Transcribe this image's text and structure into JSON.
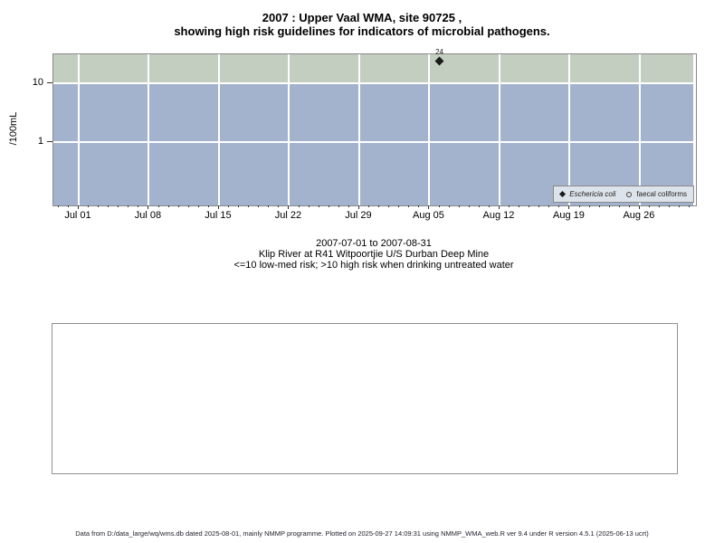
{
  "chart_data": {
    "type": "scatter",
    "title": [
      "2007 : Upper Vaal WMA, site 90725 ,",
      "showing high risk guidelines for indicators of microbial pathogens."
    ],
    "subtitle": [
      "2007-07-01 to 2007-08-31",
      "Klip River at R41 Witpoortjie U/S Durban Deep Mine",
      "<=10 low-med risk; >10 high risk when drinking untreated water"
    ],
    "ylabel": "/100mL",
    "y_scale": "log10",
    "y_ticks": [
      {
        "label": "10",
        "value": 10
      },
      {
        "label": "1",
        "value": 1
      }
    ],
    "x_axis": {
      "start_date": "2007-07-01",
      "end_date": "2007-08-31",
      "major_ticks": [
        {
          "label": "Jul 01",
          "day": 0
        },
        {
          "label": "Jul 08",
          "day": 7
        },
        {
          "label": "Jul 15",
          "day": 14
        },
        {
          "label": "Jul 22",
          "day": 21
        },
        {
          "label": "Jul 29",
          "day": 28
        },
        {
          "label": "Aug 05",
          "day": 35
        },
        {
          "label": "Aug 12",
          "day": 42
        },
        {
          "label": "Aug 19",
          "day": 49
        },
        {
          "label": "Aug 26",
          "day": 56
        }
      ]
    },
    "threshold_value": 10,
    "risk_zones": [
      {
        "name": "high risk (>10)",
        "color": "#c3cdc0"
      },
      {
        "name": "low-med risk (<=10)",
        "color": "#a3b2cd"
      }
    ],
    "series": [
      {
        "name": "Eschericia coli",
        "marker": "filled-diamond",
        "italic": true,
        "points": [
          {
            "x_day": 36,
            "value": 24,
            "label": "24"
          }
        ]
      },
      {
        "name": "faecal coliforms",
        "marker": "open-circle",
        "italic": false,
        "points": []
      }
    ],
    "legend_position": "bottom-right"
  },
  "footer": {
    "text": "Data from D:/data_large/wq/wms.db dated 2025-08-01, mainly NMMP programme. Plotted on 2025-09-27 14:09:31 using NMMP_WMA_web.R ver 9.4 under R version 4.5.1 (2025-06-13 ucrt)"
  },
  "colors": {
    "band_high": "#c3cdc0",
    "band_low": "#a3b2cd",
    "gridline": "#ffffff",
    "plot_border": "#8a8a8a",
    "legend_bg": "#dde3ea",
    "legend_border": "#8a8a8a",
    "marker": "#1a1a1a",
    "tick": "#333333"
  }
}
